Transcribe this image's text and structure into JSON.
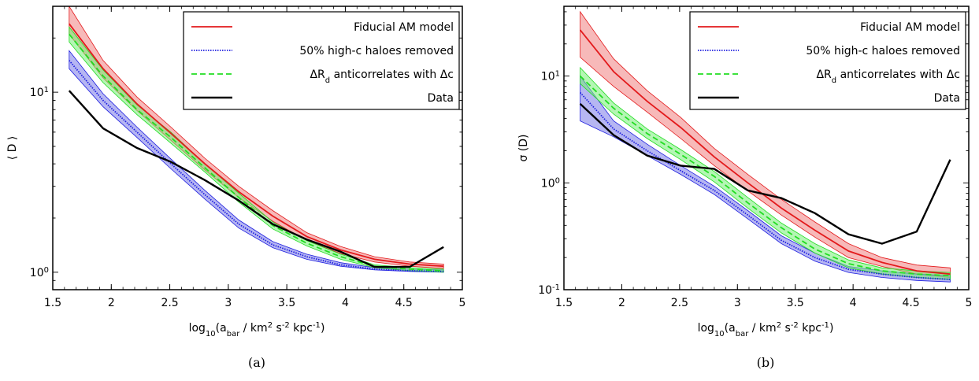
{
  "chart_data": [
    {
      "type": "line",
      "panel_label": "(a)",
      "xlabel": {
        "base": "log",
        "sub10": "10",
        "open": "(a",
        "sub_bar": "bar",
        "mid": " / km",
        "sup2": "2",
        "s": " s",
        "supm2": "-2",
        "kpc": " kpc",
        "supm1": "-1",
        "close": ")"
      },
      "ylabel": "⟨ D ⟩",
      "xlim": [
        1.5,
        5.0
      ],
      "ylim": [
        0.8,
        30
      ],
      "yscale": "log",
      "xticks": [
        "1.5",
        "2",
        "2.5",
        "3",
        "3.5",
        "4",
        "4.5",
        "5"
      ],
      "yticks": [
        {
          "value": 1,
          "base": "10",
          "exp": "0"
        },
        {
          "value": 10,
          "base": "10",
          "exp": "1"
        }
      ],
      "legend_position": "top-right",
      "x": [
        1.64,
        1.93,
        2.22,
        2.51,
        2.8,
        3.09,
        3.38,
        3.67,
        3.96,
        4.25,
        4.55,
        4.84
      ],
      "series": [
        {
          "name": "Fiducial AM model",
          "style": "solid",
          "color": "#e31a1c",
          "fill": "#f08080",
          "y": [
            24,
            13.5,
            8.6,
            5.9,
            4.0,
            2.8,
            2.05,
            1.58,
            1.33,
            1.18,
            1.11,
            1.08
          ],
          "lower": [
            21,
            12.0,
            7.9,
            5.4,
            3.7,
            2.6,
            1.92,
            1.5,
            1.27,
            1.14,
            1.08,
            1.05
          ],
          "upper": [
            30,
            15.0,
            9.4,
            6.4,
            4.3,
            3.0,
            2.2,
            1.66,
            1.39,
            1.22,
            1.14,
            1.11
          ]
        },
        {
          "name": "50% high-c haloes removed",
          "style": "dotted",
          "color": "#1f1fe0",
          "fill": "#7a7ae8",
          "y": [
            15,
            9.0,
            6.0,
            4.0,
            2.7,
            1.85,
            1.42,
            1.22,
            1.1,
            1.04,
            1.02,
            1.01
          ],
          "lower": [
            13.5,
            8.3,
            5.6,
            3.75,
            2.55,
            1.76,
            1.37,
            1.18,
            1.08,
            1.03,
            1.01,
            1.0
          ],
          "upper": [
            17,
            9.8,
            6.4,
            4.25,
            2.85,
            1.95,
            1.48,
            1.26,
            1.13,
            1.06,
            1.04,
            1.03
          ]
        },
        {
          "name": "ΔR_d anticorrelates with Δc",
          "style": "dashed",
          "color": "#22dd22",
          "fill": "#77ee77",
          "y": [
            21,
            12.3,
            8.0,
            5.6,
            3.8,
            2.6,
            1.82,
            1.45,
            1.22,
            1.08,
            1.04,
            1.02
          ],
          "lower": [
            19,
            11.3,
            7.5,
            5.2,
            3.6,
            2.45,
            1.74,
            1.4,
            1.18,
            1.06,
            1.02,
            1.0
          ],
          "upper": [
            23,
            13.3,
            8.5,
            6.0,
            4.0,
            2.75,
            1.9,
            1.5,
            1.26,
            1.1,
            1.06,
            1.04
          ]
        },
        {
          "name": "Data",
          "style": "solid",
          "color": "#000000",
          "y": [
            10.2,
            6.3,
            4.9,
            4.1,
            3.25,
            2.5,
            1.85,
            1.52,
            1.3,
            1.07,
            1.07,
            1.38
          ]
        }
      ]
    },
    {
      "type": "line",
      "panel_label": "(b)",
      "xlabel": {
        "base": "log",
        "sub10": "10",
        "open": "(a",
        "sub_bar": "bar",
        "mid": " / km",
        "sup2": "2",
        "s": " s",
        "supm2": "-2",
        "kpc": " kpc",
        "supm1": "-1",
        "close": ")"
      },
      "ylabel": "σ (D)",
      "xlim": [
        1.5,
        5.0
      ],
      "ylim": [
        0.1,
        45
      ],
      "yscale": "log",
      "xticks": [
        "1.5",
        "2",
        "2.5",
        "3",
        "3.5",
        "4",
        "4.5",
        "5"
      ],
      "yticks": [
        {
          "value": 0.1,
          "base": "10",
          "exp": "-1"
        },
        {
          "value": 1,
          "base": "10",
          "exp": "0"
        },
        {
          "value": 10,
          "base": "10",
          "exp": "1"
        }
      ],
      "legend_position": "top-right",
      "x": [
        1.64,
        1.93,
        2.22,
        2.51,
        2.8,
        3.09,
        3.38,
        3.67,
        3.96,
        4.25,
        4.55,
        4.84
      ],
      "series": [
        {
          "name": "Fiducial AM model",
          "style": "solid",
          "color": "#e31a1c",
          "fill": "#f08080",
          "y": [
            27,
            11,
            5.8,
            3.3,
            1.75,
            1.0,
            0.58,
            0.36,
            0.23,
            0.18,
            0.15,
            0.14
          ],
          "lower": [
            15,
            8.0,
            4.6,
            2.6,
            1.45,
            0.84,
            0.5,
            0.31,
            0.2,
            0.165,
            0.14,
            0.13
          ],
          "upper": [
            40,
            14.5,
            7.3,
            4.1,
            2.1,
            1.2,
            0.7,
            0.43,
            0.27,
            0.2,
            0.17,
            0.16
          ]
        },
        {
          "name": "50% high-c haloes removed",
          "style": "dotted",
          "color": "#1f1fe0",
          "fill": "#7a7ae8",
          "y": [
            7.0,
            3.2,
            2.0,
            1.3,
            0.85,
            0.5,
            0.29,
            0.2,
            0.155,
            0.14,
            0.13,
            0.125
          ],
          "lower": [
            3.8,
            2.7,
            1.8,
            1.2,
            0.78,
            0.46,
            0.27,
            0.185,
            0.145,
            0.13,
            0.122,
            0.118
          ],
          "upper": [
            10,
            3.8,
            2.3,
            1.45,
            0.93,
            0.55,
            0.32,
            0.22,
            0.165,
            0.15,
            0.14,
            0.135
          ]
        },
        {
          "name": "ΔR_d anticorrelates with Δc",
          "style": "dashed",
          "color": "#22dd22",
          "fill": "#77ee77",
          "y": [
            10,
            5.0,
            2.9,
            1.85,
            1.15,
            0.65,
            0.38,
            0.24,
            0.175,
            0.15,
            0.14,
            0.135
          ],
          "lower": [
            8.5,
            4.4,
            2.6,
            1.65,
            1.02,
            0.58,
            0.34,
            0.22,
            0.16,
            0.14,
            0.13,
            0.125
          ],
          "upper": [
            12,
            5.6,
            3.2,
            2.05,
            1.28,
            0.73,
            0.42,
            0.27,
            0.19,
            0.16,
            0.15,
            0.145
          ]
        },
        {
          "name": "Data",
          "style": "solid",
          "color": "#000000",
          "y": [
            5.5,
            2.8,
            1.8,
            1.45,
            1.35,
            0.85,
            0.72,
            0.52,
            0.33,
            0.27,
            0.35,
            1.65
          ]
        }
      ]
    }
  ]
}
